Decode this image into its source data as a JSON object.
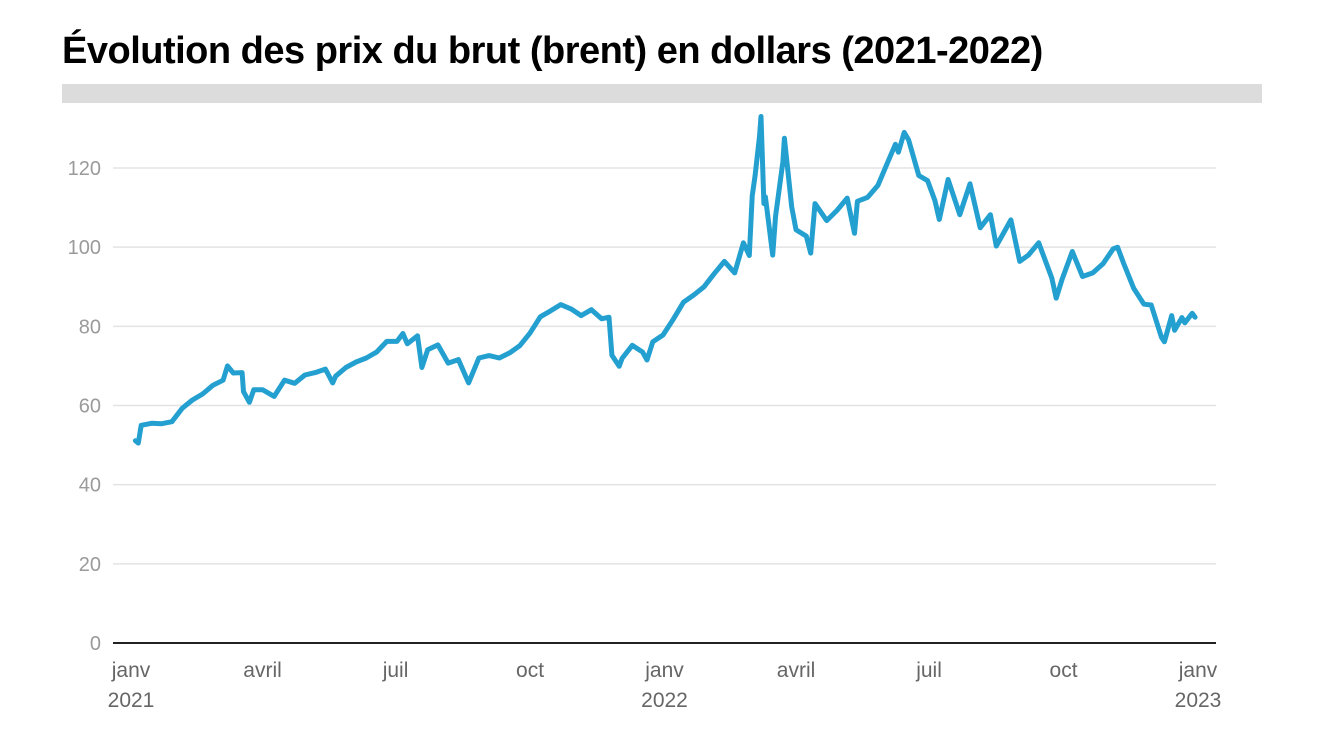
{
  "chart_data": {
    "type": "line",
    "title": "Évolution des prix du brut (brent) en dollars (2021-2022)",
    "xlabel": "",
    "ylabel": "",
    "ylim": [
      0,
      135
    ],
    "xlim": [
      "2021-01-01",
      "2023-01-01"
    ],
    "grid": true,
    "line_color": "#24a0d0",
    "yticks": [
      0,
      20,
      40,
      60,
      80,
      100,
      120
    ],
    "xticks": [
      {
        "date": "2021-01-01",
        "label": "janv",
        "year": "2021"
      },
      {
        "date": "2021-04-01",
        "label": "avril",
        "year": ""
      },
      {
        "date": "2021-07-01",
        "label": "juil",
        "year": ""
      },
      {
        "date": "2021-10-01",
        "label": "oct",
        "year": ""
      },
      {
        "date": "2022-01-01",
        "label": "janv",
        "year": "2022"
      },
      {
        "date": "2022-04-01",
        "label": "avril",
        "year": ""
      },
      {
        "date": "2022-07-01",
        "label": "juil",
        "year": ""
      },
      {
        "date": "2022-10-01",
        "label": "oct",
        "year": ""
      },
      {
        "date": "2023-01-01",
        "label": "janv",
        "year": "2023"
      }
    ],
    "series": [
      {
        "points": [
          [
            "2021-01-04",
            51.1
          ],
          [
            "2021-01-06",
            50.5
          ],
          [
            "2021-01-08",
            55.0
          ],
          [
            "2021-01-15",
            55.5
          ],
          [
            "2021-01-22",
            55.4
          ],
          [
            "2021-01-29",
            55.9
          ],
          [
            "2021-02-05",
            59.3
          ],
          [
            "2021-02-12",
            61.4
          ],
          [
            "2021-02-19",
            62.9
          ],
          [
            "2021-02-26",
            65.1
          ],
          [
            "2021-03-05",
            66.4
          ],
          [
            "2021-03-08",
            70.0
          ],
          [
            "2021-03-12",
            68.2
          ],
          [
            "2021-03-18",
            68.3
          ],
          [
            "2021-03-19",
            63.5
          ],
          [
            "2021-03-23",
            60.8
          ],
          [
            "2021-03-26",
            64.0
          ],
          [
            "2021-04-01",
            64.0
          ],
          [
            "2021-04-09",
            62.3
          ],
          [
            "2021-04-16",
            66.4
          ],
          [
            "2021-04-23",
            65.6
          ],
          [
            "2021-04-30",
            67.7
          ],
          [
            "2021-05-07",
            68.3
          ],
          [
            "2021-05-14",
            69.2
          ],
          [
            "2021-05-19",
            65.7
          ],
          [
            "2021-05-21",
            67.4
          ],
          [
            "2021-05-28",
            69.6
          ],
          [
            "2021-06-04",
            71.0
          ],
          [
            "2021-06-11",
            72.0
          ],
          [
            "2021-06-18",
            73.5
          ],
          [
            "2021-06-25",
            76.2
          ],
          [
            "2021-07-02",
            76.2
          ],
          [
            "2021-07-06",
            78.2
          ],
          [
            "2021-07-09",
            75.6
          ],
          [
            "2021-07-16",
            77.6
          ],
          [
            "2021-07-19",
            69.6
          ],
          [
            "2021-07-23",
            74.1
          ],
          [
            "2021-07-30",
            75.3
          ],
          [
            "2021-08-06",
            70.7
          ],
          [
            "2021-08-13",
            71.6
          ],
          [
            "2021-08-20",
            65.7
          ],
          [
            "2021-08-27",
            72.0
          ],
          [
            "2021-09-03",
            72.6
          ],
          [
            "2021-09-10",
            72.0
          ],
          [
            "2021-09-17",
            73.3
          ],
          [
            "2021-09-24",
            75.1
          ],
          [
            "2021-10-01",
            78.3
          ],
          [
            "2021-10-08",
            82.4
          ],
          [
            "2021-10-15",
            83.9
          ],
          [
            "2021-10-22",
            85.5
          ],
          [
            "2021-10-29",
            84.4
          ],
          [
            "2021-11-05",
            82.7
          ],
          [
            "2021-11-12",
            84.2
          ],
          [
            "2021-11-19",
            81.9
          ],
          [
            "2021-11-24",
            82.3
          ],
          [
            "2021-11-26",
            72.7
          ],
          [
            "2021-12-01",
            69.9
          ],
          [
            "2021-12-03",
            71.9
          ],
          [
            "2021-12-10",
            75.2
          ],
          [
            "2021-12-17",
            73.5
          ],
          [
            "2021-12-20",
            71.5
          ],
          [
            "2021-12-24",
            76.1
          ],
          [
            "2021-12-31",
            77.8
          ],
          [
            "2022-01-07",
            81.8
          ],
          [
            "2022-01-14",
            86.1
          ],
          [
            "2022-01-21",
            87.9
          ],
          [
            "2022-01-28",
            90.0
          ],
          [
            "2022-02-04",
            93.3
          ],
          [
            "2022-02-11",
            96.4
          ],
          [
            "2022-02-18",
            93.5
          ],
          [
            "2022-02-24",
            101.1
          ],
          [
            "2022-02-28",
            97.9
          ],
          [
            "2022-03-02",
            112.9
          ],
          [
            "2022-03-04",
            118.1
          ],
          [
            "2022-03-07",
            127.98
          ],
          [
            "2022-03-08",
            133.0
          ],
          [
            "2022-03-10",
            111.0
          ],
          [
            "2022-03-11",
            112.7
          ],
          [
            "2022-03-16",
            98.0
          ],
          [
            "2022-03-18",
            107.9
          ],
          [
            "2022-03-23",
            121.6
          ],
          [
            "2022-03-24",
            127.5
          ],
          [
            "2022-03-29",
            110.2
          ],
          [
            "2022-04-01",
            104.4
          ],
          [
            "2022-04-08",
            102.8
          ],
          [
            "2022-04-11",
            98.5
          ],
          [
            "2022-04-14",
            111.0
          ],
          [
            "2022-04-22",
            106.7
          ],
          [
            "2022-04-29",
            109.3
          ],
          [
            "2022-05-06",
            112.4
          ],
          [
            "2022-05-11",
            103.5
          ],
          [
            "2022-05-13",
            111.6
          ],
          [
            "2022-05-20",
            112.6
          ],
          [
            "2022-05-27",
            115.6
          ],
          [
            "2022-06-03",
            121.7
          ],
          [
            "2022-06-08",
            126.0
          ],
          [
            "2022-06-10",
            124.0
          ],
          [
            "2022-06-14",
            129.0
          ],
          [
            "2022-06-17",
            127.1
          ],
          [
            "2022-06-24",
            118.1
          ],
          [
            "2022-06-30",
            116.8
          ],
          [
            "2022-07-05",
            111.8
          ],
          [
            "2022-07-08",
            107.0
          ],
          [
            "2022-07-14",
            117.1
          ],
          [
            "2022-07-22",
            108.2
          ],
          [
            "2022-07-29",
            116.0
          ],
          [
            "2022-08-05",
            104.9
          ],
          [
            "2022-08-12",
            108.2
          ],
          [
            "2022-08-16",
            100.3
          ],
          [
            "2022-08-26",
            106.9
          ],
          [
            "2022-09-01",
            96.4
          ],
          [
            "2022-09-07",
            98.0
          ],
          [
            "2022-09-14",
            101.1
          ],
          [
            "2022-09-23",
            92.2
          ],
          [
            "2022-09-26",
            87.1
          ],
          [
            "2022-09-30",
            91.9
          ],
          [
            "2022-10-07",
            98.9
          ],
          [
            "2022-10-14",
            92.6
          ],
          [
            "2022-10-21",
            93.5
          ],
          [
            "2022-10-28",
            95.8
          ],
          [
            "2022-11-04",
            99.6
          ],
          [
            "2022-11-07",
            100.0
          ],
          [
            "2022-11-11",
            96.0
          ],
          [
            "2022-11-18",
            89.6
          ],
          [
            "2022-11-25",
            85.6
          ],
          [
            "2022-11-30",
            85.4
          ],
          [
            "2022-12-07",
            77.2
          ],
          [
            "2022-12-09",
            76.1
          ],
          [
            "2022-12-14",
            82.7
          ],
          [
            "2022-12-16",
            79.0
          ],
          [
            "2022-12-21",
            82.2
          ],
          [
            "2022-12-23",
            80.9
          ],
          [
            "2022-12-28",
            83.3
          ],
          [
            "2022-12-30",
            82.3
          ]
        ]
      }
    ]
  }
}
